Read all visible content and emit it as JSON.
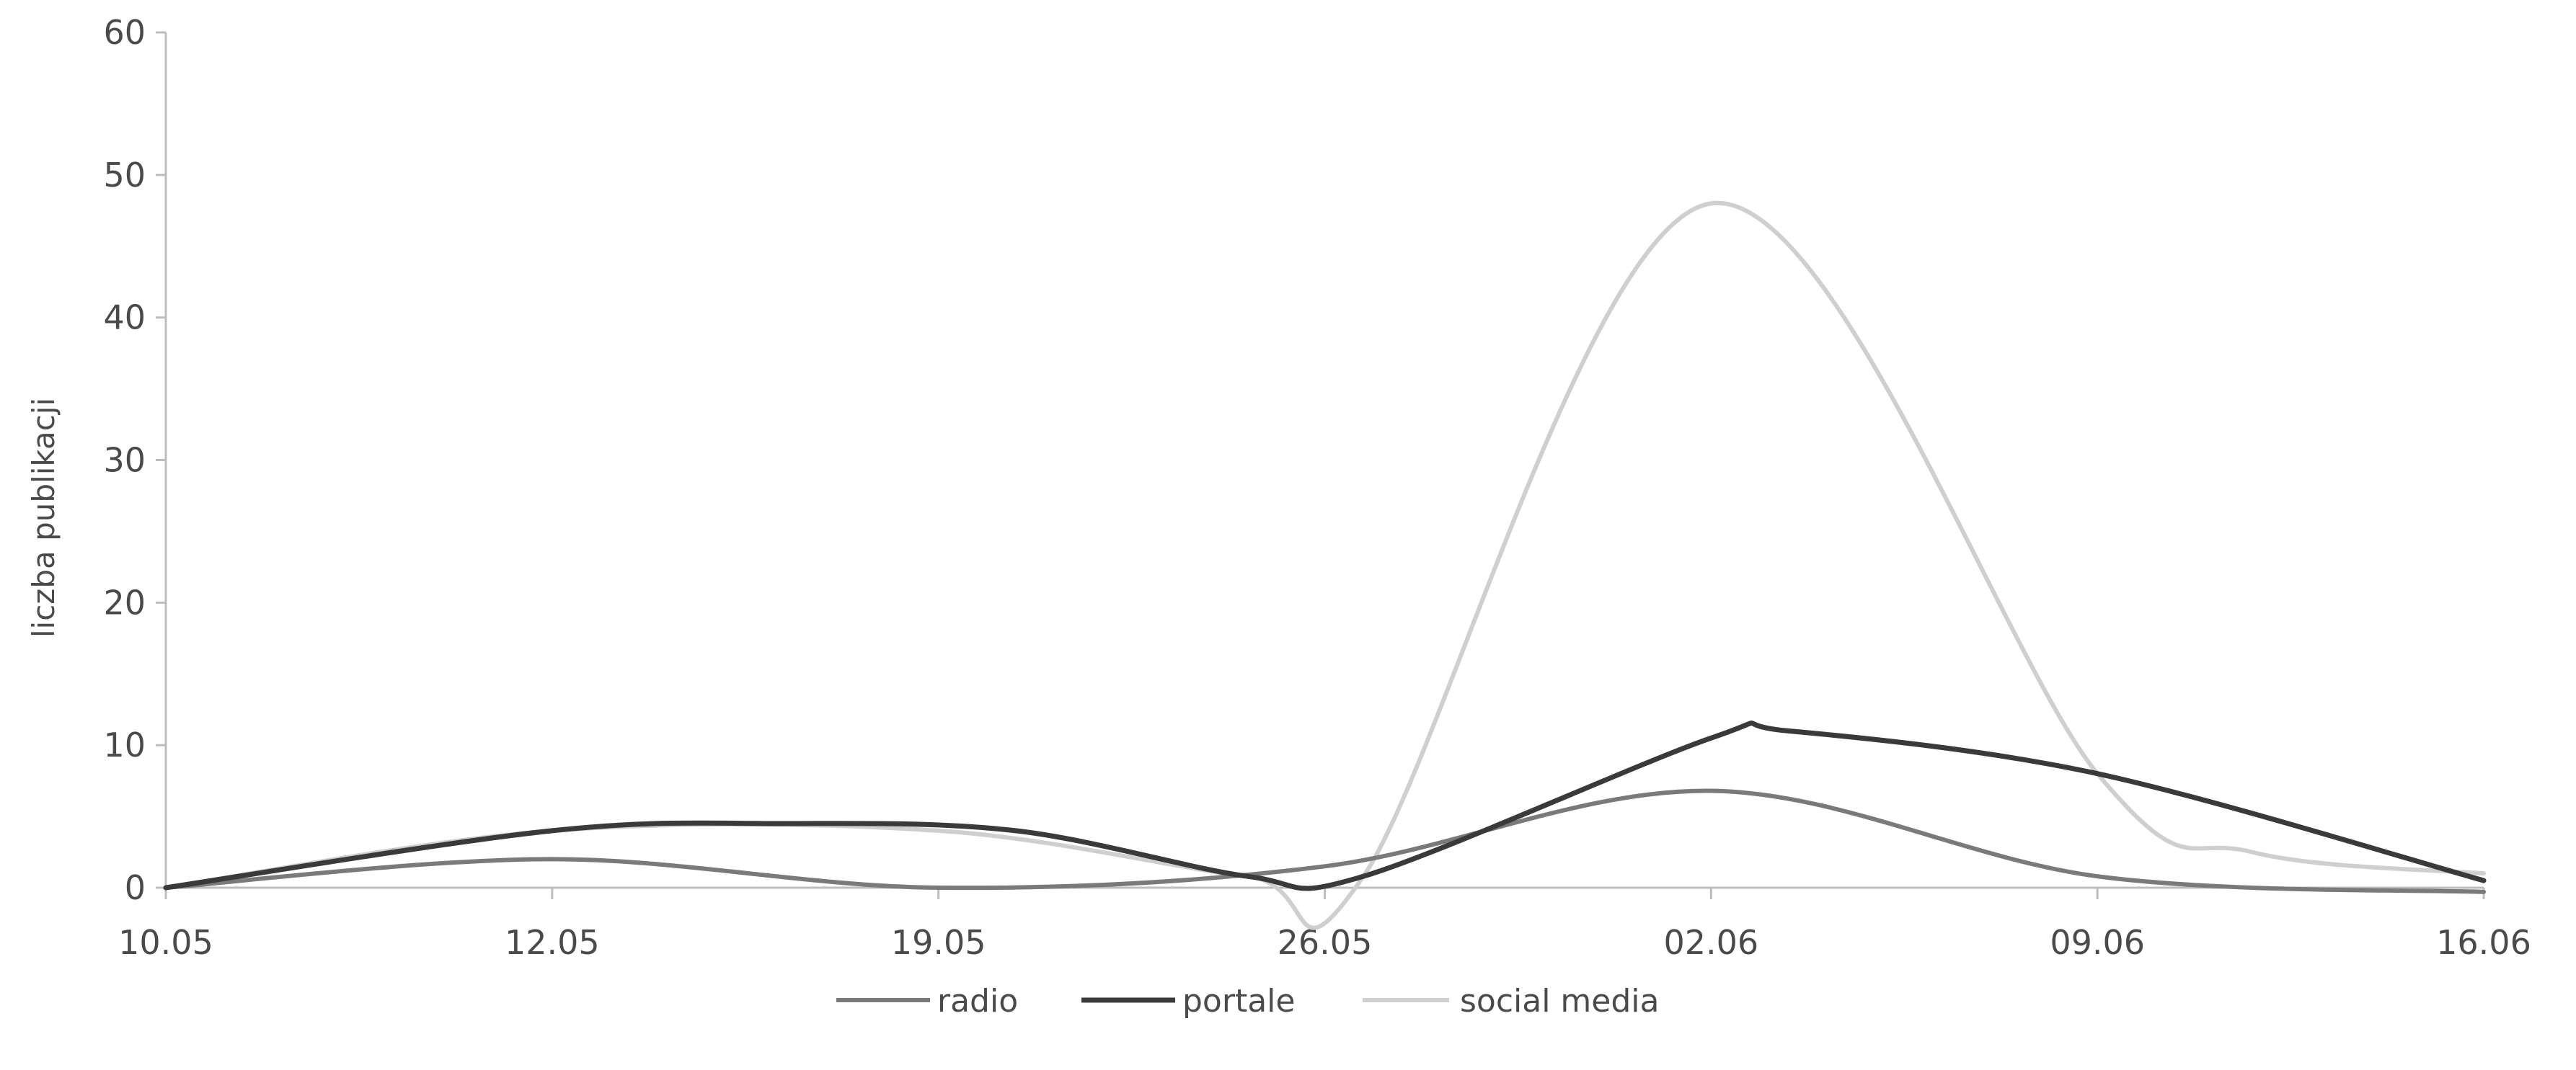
{
  "chart_data": {
    "type": "line",
    "title": "",
    "xlabel": "",
    "ylabel": "liczba publikacji",
    "categories": [
      "10.05",
      "12.05",
      "19.05",
      "26.05",
      "02.06",
      "09.06",
      "16.06"
    ],
    "ylim": [
      0,
      60
    ],
    "yticks": [
      0,
      10,
      20,
      30,
      40,
      50,
      60
    ],
    "grid": false,
    "legend_position": "bottom",
    "series": [
      {
        "name": "radio",
        "color": "#7a7a7a",
        "points": [
          [
            0,
            0
          ],
          [
            1,
            2
          ],
          [
            2,
            0
          ],
          [
            3,
            1.5
          ],
          [
            4,
            6.8
          ],
          [
            5,
            0.8
          ],
          [
            6,
            -0.3
          ]
        ]
      },
      {
        "name": "portale",
        "color": "#3a3a3a",
        "points": [
          [
            0,
            0
          ],
          [
            1,
            4
          ],
          [
            1.6,
            4.5
          ],
          [
            2.2,
            4
          ],
          [
            2.8,
            0.8
          ],
          [
            3.1,
            0.8
          ],
          [
            4,
            10.5
          ],
          [
            4.2,
            11
          ],
          [
            5,
            8
          ],
          [
            6,
            0.5
          ]
        ]
      },
      {
        "name": "social media",
        "color": "#cfcfcf",
        "points": [
          [
            0,
            0
          ],
          [
            1,
            4
          ],
          [
            2,
            4
          ],
          [
            2.8,
            0.8
          ],
          [
            3.1,
            0.8
          ],
          [
            4,
            48
          ],
          [
            5,
            8
          ],
          [
            5.4,
            2.5
          ],
          [
            6,
            1
          ]
        ]
      }
    ]
  }
}
